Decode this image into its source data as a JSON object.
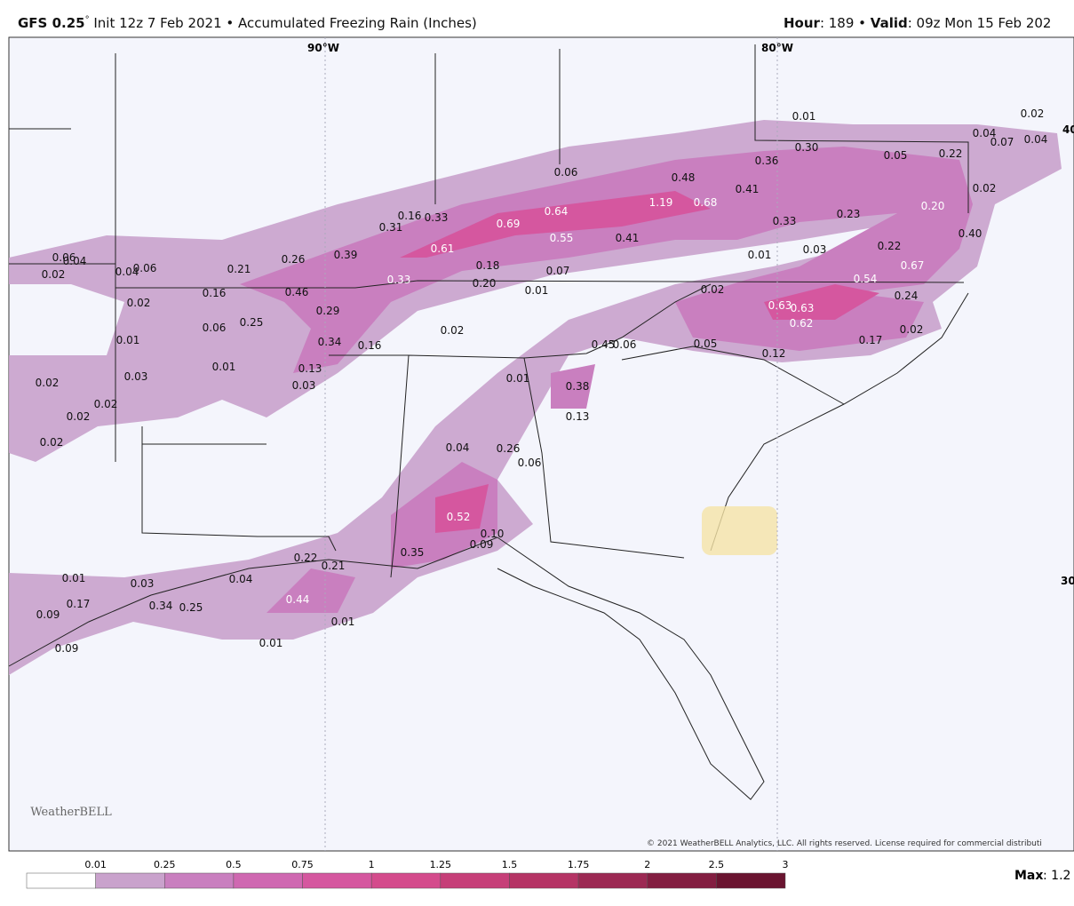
{
  "header": {
    "model": "GFS 0.25",
    "degree": "°",
    "init": " Init 12z 7 Feb 2021 • Accumulated Freezing Rain (Inches)",
    "hour_label": "Hour",
    "hour_value": ": 189 • ",
    "valid_label": "Valid",
    "valid_value": ": 09z Mon 15 Feb 202"
  },
  "map": {
    "grid_labels": [
      "90°W",
      "80°W",
      "40",
      "30"
    ],
    "value_labels": [
      "0.01",
      "0.02",
      "0.04",
      "0.07",
      "0.04",
      "0.30",
      "0.05",
      "0.36",
      "0.22",
      "0.06",
      "0.48",
      "0.41",
      "0.02",
      "1.19",
      "0.68",
      "0.20",
      "0.64",
      "0.69",
      "0.16",
      "0.33",
      "0.31",
      "0.33",
      "0.23",
      "0.55",
      "0.41",
      "0.40",
      "0.61",
      "0.22",
      "0.01",
      "0.03",
      "0.39",
      "0.26",
      "0.06",
      "0.04",
      "0.02",
      "0.04",
      "0.06",
      "0.21",
      "0.18",
      "0.07",
      "0.67",
      "0.33",
      "0.20",
      "0.01",
      "0.54",
      "0.46",
      "0.16",
      "0.02",
      "0.24",
      "0.02",
      "0.63",
      "0.63",
      "0.29",
      "0.06",
      "0.25",
      "0.62",
      "0.02",
      "0.02",
      "0.01",
      "0.34",
      "0.16",
      "0.45",
      "0.06",
      "0.05",
      "0.17",
      "0.12",
      "0.13",
      "0.03",
      "0.01",
      "0.02",
      "0.03",
      "0.01",
      "0.38",
      "0.02",
      "0.02",
      "0.13",
      "0.02",
      "0.04",
      "0.26",
      "0.06",
      "0.52",
      "0.10",
      "0.09",
      "0.22",
      "0.21",
      "0.35",
      "0.01",
      "0.03",
      "0.04",
      "0.17",
      "0.34",
      "0.25",
      "0.44",
      "0.09",
      "0.01",
      "0.09",
      "0.01"
    ],
    "logo": "WeatherBELL",
    "copyright": "© 2021 WeatherBELL Analytics, LLC. All rights reserved. License required for commercial distributi"
  },
  "colorbar": {
    "ticks": [
      "0.01",
      "0.25",
      "0.5",
      "0.75",
      "1",
      "1.25",
      "1.5",
      "1.75",
      "2",
      "2.5",
      "3"
    ],
    "colors": [
      "#ffffff",
      "#c9a2cc",
      "#c97fbf",
      "#cf68b1",
      "#d5579f",
      "#d44b8c",
      "#c63f78",
      "#b53465",
      "#9c2953",
      "#831e41",
      "#6a1430"
    ]
  },
  "max": {
    "label": "Max",
    "value": ": 1.2"
  }
}
